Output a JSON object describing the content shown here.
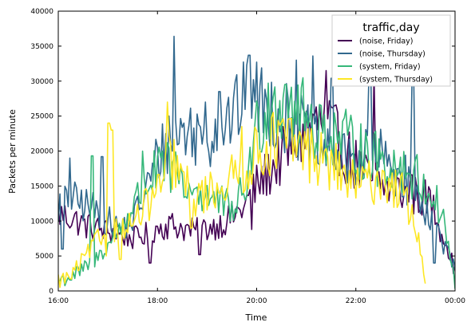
{
  "chart_data": {
    "type": "line",
    "title": "",
    "xlabel": "Time",
    "ylabel": "Packets per minute",
    "x_range_minutes": [
      960,
      1440
    ],
    "x_ticks": [
      {
        "value": 960,
        "label": "16:00"
      },
      {
        "value": 1080,
        "label": "18:00"
      },
      {
        "value": 1200,
        "label": "20:00"
      },
      {
        "value": 1320,
        "label": "22:00"
      },
      {
        "value": 1440,
        "label": "00:00"
      }
    ],
    "ylim": [
      0,
      40000
    ],
    "y_ticks": [
      0,
      5000,
      10000,
      15000,
      20000,
      25000,
      30000,
      35000,
      40000
    ],
    "grid": false,
    "legend": {
      "title": "traffic,day",
      "placement": "top-right"
    },
    "series": [
      {
        "name": "(noise, Friday)",
        "color": "#440154",
        "x_end": 1440,
        "keyframes": [
          [
            960,
            11000
          ],
          [
            975,
            10500
          ],
          [
            990,
            9500
          ],
          [
            1005,
            9000
          ],
          [
            1020,
            8500
          ],
          [
            1035,
            8000
          ],
          [
            1050,
            7500
          ],
          [
            1065,
            8000
          ],
          [
            1080,
            9000
          ],
          [
            1095,
            9500
          ],
          [
            1110,
            9000
          ],
          [
            1125,
            8500
          ],
          [
            1140,
            9000
          ],
          [
            1155,
            9500
          ],
          [
            1170,
            10500
          ],
          [
            1185,
            12000
          ],
          [
            1200,
            15000
          ],
          [
            1215,
            17000
          ],
          [
            1230,
            19000
          ],
          [
            1245,
            21000
          ],
          [
            1260,
            23000
          ],
          [
            1275,
            24000
          ],
          [
            1290,
            23000
          ],
          [
            1305,
            20000
          ],
          [
            1320,
            18000
          ],
          [
            1335,
            16000
          ],
          [
            1350,
            15000
          ],
          [
            1365,
            14500
          ],
          [
            1380,
            14000
          ],
          [
            1395,
            13500
          ],
          [
            1410,
            13000
          ],
          [
            1425,
            8000
          ],
          [
            1440,
            3000
          ]
        ],
        "spikes": [
          [
            1071,
            4000
          ],
          [
            1131,
            5200
          ],
          [
            1194,
            8800
          ],
          [
            1284,
            31500
          ],
          [
            1342,
            31000
          ],
          [
            1387,
            16600
          ],
          [
            1429,
            6500
          ]
        ]
      },
      {
        "name": "(noise, Thursday)",
        "color": "#31688e",
        "x_end": 1440,
        "keyframes": [
          [
            960,
            12000
          ],
          [
            975,
            13000
          ],
          [
            990,
            12500
          ],
          [
            1005,
            11500
          ],
          [
            1020,
            10000
          ],
          [
            1035,
            9000
          ],
          [
            1050,
            10000
          ],
          [
            1065,
            14000
          ],
          [
            1080,
            19000
          ],
          [
            1095,
            22000
          ],
          [
            1110,
            23000
          ],
          [
            1125,
            22500
          ],
          [
            1140,
            22000
          ],
          [
            1155,
            23000
          ],
          [
            1170,
            25000
          ],
          [
            1185,
            27000
          ],
          [
            1200,
            27500
          ],
          [
            1215,
            26000
          ],
          [
            1230,
            25000
          ],
          [
            1245,
            24000
          ],
          [
            1260,
            22500
          ],
          [
            1275,
            20000
          ],
          [
            1290,
            19000
          ],
          [
            1305,
            18500
          ],
          [
            1320,
            19000
          ],
          [
            1335,
            20000
          ],
          [
            1350,
            19000
          ],
          [
            1365,
            17500
          ],
          [
            1380,
            16000
          ],
          [
            1395,
            13000
          ],
          [
            1410,
            11000
          ],
          [
            1425,
            7000
          ],
          [
            1440,
            3000
          ]
        ],
        "spikes": [
          [
            965,
            6000
          ],
          [
            974,
            19000
          ],
          [
            1013,
            19200
          ],
          [
            1100,
            36400
          ],
          [
            1138,
            27000
          ],
          [
            1155,
            28500
          ],
          [
            1191,
            33700
          ],
          [
            1248,
            33000
          ],
          [
            1268,
            33600
          ],
          [
            1291,
            30400
          ],
          [
            1337,
            31500
          ],
          [
            1389,
            31000
          ],
          [
            1415,
            4000
          ]
        ]
      },
      {
        "name": "(system, Friday)",
        "color": "#35b779",
        "x_end": 1440,
        "keyframes": [
          [
            960,
            1500
          ],
          [
            975,
            2000
          ],
          [
            990,
            3000
          ],
          [
            1005,
            4500
          ],
          [
            1020,
            6500
          ],
          [
            1035,
            9000
          ],
          [
            1050,
            12000
          ],
          [
            1065,
            15000
          ],
          [
            1080,
            17000
          ],
          [
            1095,
            17500
          ],
          [
            1110,
            16000
          ],
          [
            1125,
            14500
          ],
          [
            1140,
            13500
          ],
          [
            1155,
            12500
          ],
          [
            1170,
            12000
          ],
          [
            1185,
            14000
          ],
          [
            1200,
            23000
          ],
          [
            1215,
            27500
          ],
          [
            1230,
            27000
          ],
          [
            1245,
            26500
          ],
          [
            1260,
            24500
          ],
          [
            1275,
            23500
          ],
          [
            1290,
            22500
          ],
          [
            1305,
            21500
          ],
          [
            1320,
            20500
          ],
          [
            1335,
            19500
          ],
          [
            1350,
            18500
          ],
          [
            1365,
            18000
          ],
          [
            1380,
            17500
          ],
          [
            1395,
            16000
          ],
          [
            1410,
            14000
          ],
          [
            1425,
            11000
          ],
          [
            1440,
            1000
          ]
        ],
        "spikes": [
          [
            1001,
            19300
          ],
          [
            1062,
            20000
          ],
          [
            1086,
            20000
          ],
          [
            1114,
            13500
          ],
          [
            1168,
            10000
          ],
          [
            1235,
            29500
          ]
        ]
      },
      {
        "name": "(system, Thursday)",
        "color": "#fde725",
        "x_end": 1405,
        "keyframes": [
          [
            960,
            1500
          ],
          [
            975,
            2000
          ],
          [
            990,
            4500
          ],
          [
            1005,
            7000
          ],
          [
            1020,
            8500
          ],
          [
            1035,
            9000
          ],
          [
            1050,
            9500
          ],
          [
            1065,
            12000
          ],
          [
            1080,
            14000
          ],
          [
            1095,
            19000
          ],
          [
            1110,
            16000
          ],
          [
            1125,
            13500
          ],
          [
            1140,
            14000
          ],
          [
            1155,
            15000
          ],
          [
            1170,
            16000
          ],
          [
            1185,
            17500
          ],
          [
            1200,
            19500
          ],
          [
            1215,
            21000
          ],
          [
            1230,
            21500
          ],
          [
            1245,
            21000
          ],
          [
            1260,
            20000
          ],
          [
            1275,
            19000
          ],
          [
            1290,
            18000
          ],
          [
            1305,
            16500
          ],
          [
            1320,
            15000
          ],
          [
            1335,
            15500
          ],
          [
            1350,
            16000
          ],
          [
            1365,
            15000
          ],
          [
            1380,
            13500
          ],
          [
            1395,
            8000
          ],
          [
            1405,
            1000
          ]
        ],
        "spikes": [
          [
            1019,
            5000
          ],
          [
            1021,
            24000
          ],
          [
            1025,
            23000
          ],
          [
            1035,
            4500
          ],
          [
            1092,
            27000
          ],
          [
            1121,
            9000
          ],
          [
            1182,
            23500
          ]
        ]
      }
    ]
  }
}
